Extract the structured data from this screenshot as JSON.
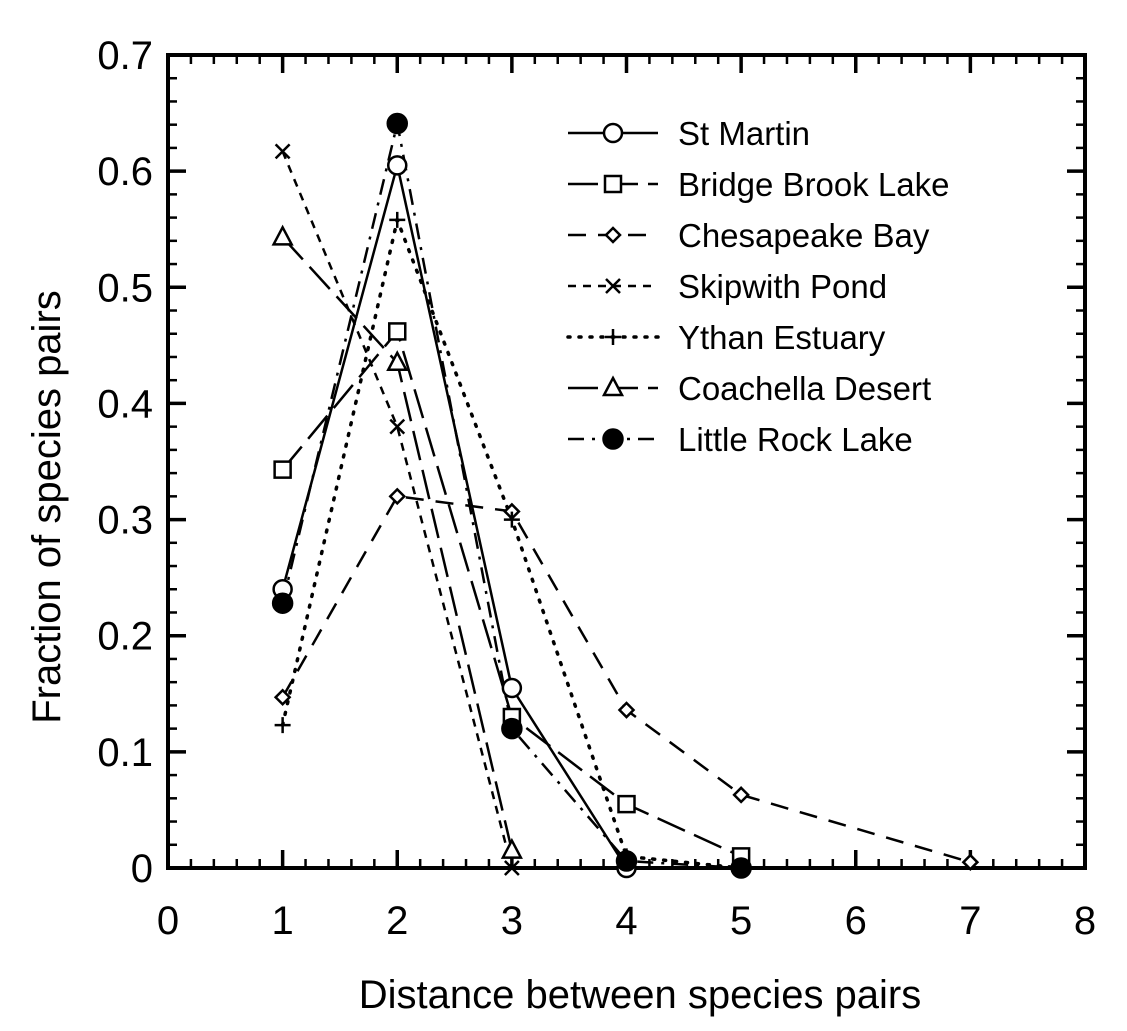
{
  "chart_data": {
    "type": "line",
    "xlabel": "Distance between species pairs",
    "ylabel": "Fraction of species pairs",
    "xlim": [
      0,
      8
    ],
    "ylim": [
      0,
      0.7
    ],
    "xticks": [
      "0",
      "1",
      "2",
      "3",
      "4",
      "5",
      "6",
      "7",
      "8"
    ],
    "yticks": [
      "0",
      "0.1",
      "0.2",
      "0.3",
      "0.4",
      "0.5",
      "0.6",
      "0.7"
    ],
    "grid": false,
    "legend_position": "top-right",
    "series": [
      {
        "name": "St Martin",
        "marker": "circle-open",
        "dash": "solid",
        "x": [
          1,
          2,
          3,
          4
        ],
        "y": [
          0.24,
          0.605,
          0.155,
          0.0
        ]
      },
      {
        "name": "Bridge Brook Lake",
        "marker": "square-open",
        "dash": "long-dash",
        "x": [
          1,
          2,
          3,
          4,
          5
        ],
        "y": [
          0.343,
          0.462,
          0.13,
          0.055,
          0.01
        ]
      },
      {
        "name": "Chesapeake Bay",
        "marker": "diamond-open",
        "dash": "dash",
        "x": [
          1,
          2,
          3,
          4,
          5,
          7
        ],
        "y": [
          0.147,
          0.32,
          0.307,
          0.136,
          0.063,
          0.005
        ]
      },
      {
        "name": "Skipwith Pond",
        "marker": "x",
        "dash": "short-dash",
        "x": [
          1,
          2,
          3
        ],
        "y": [
          0.617,
          0.38,
          0.0
        ]
      },
      {
        "name": "Ythan Estuary",
        "marker": "plus",
        "dash": "dot",
        "x": [
          1,
          2,
          3,
          4,
          5
        ],
        "y": [
          0.123,
          0.558,
          0.3,
          0.01,
          0.0
        ]
      },
      {
        "name": "Coachella Desert",
        "marker": "triangle-open",
        "dash": "long-dash",
        "x": [
          1,
          2,
          3
        ],
        "y": [
          0.543,
          0.435,
          0.015
        ]
      },
      {
        "name": "Little Rock Lake",
        "marker": "circle-filled",
        "dash": "dash-dot",
        "x": [
          1,
          2,
          3,
          4,
          5
        ],
        "y": [
          0.228,
          0.641,
          0.12,
          0.006,
          0.0
        ]
      }
    ]
  }
}
